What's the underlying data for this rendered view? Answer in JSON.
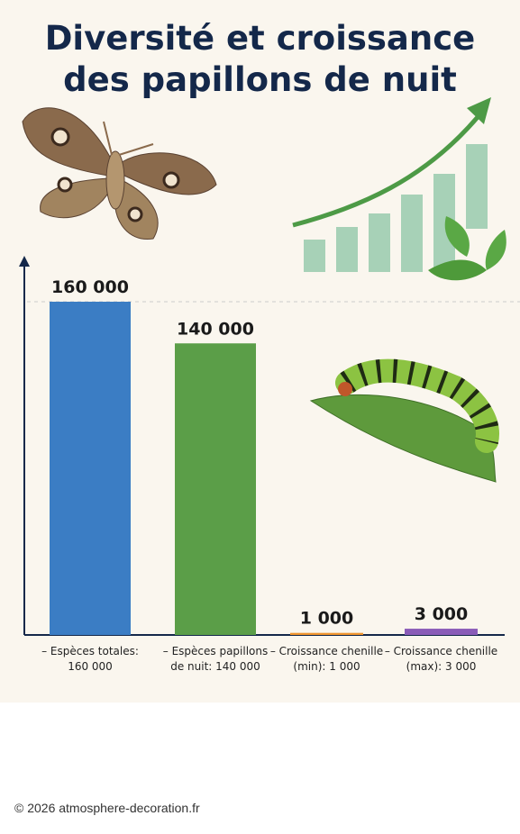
{
  "chart_data": {
    "type": "bar",
    "title": "Diversité et croissance des papillons de nuit",
    "categories": [
      "– Espèces totales: 160 000",
      "– Espèces papillons de nuit: 140 000",
      "– Croissance chenille (min): 1 000",
      "– Croissance chenille (max): 3 000"
    ],
    "values": [
      160000,
      140000,
      1000,
      3000
    ],
    "value_labels": [
      "160 000",
      "140 000",
      "1 000",
      "3 000"
    ],
    "colors": [
      "#3b7dc4",
      "#5b9e48",
      "#f0952f",
      "#8a5cb8"
    ],
    "ylim": [
      0,
      160000
    ]
  },
  "footer": "© 2026 atmosphere-decoration.fr"
}
